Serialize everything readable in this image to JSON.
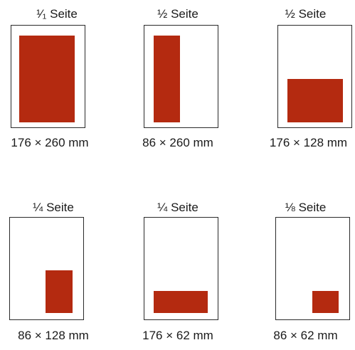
{
  "formats": [
    {
      "title": "¹⁄₁ Seite",
      "dims": "176 × 260 mm"
    },
    {
      "title": "½ Seite",
      "dims": "86 × 260 mm"
    },
    {
      "title": "½ Seite",
      "dims": "176 × 128 mm"
    },
    {
      "title": "¼ Seite",
      "dims": "86 × 128 mm"
    },
    {
      "title": "¼ Seite",
      "dims": "176 × 62 mm"
    },
    {
      "title": "⅛ Seite",
      "dims": "86 × 62 mm"
    }
  ],
  "colors": {
    "ad_fill": "#b42a10",
    "page_border": "#2a2a2a"
  }
}
